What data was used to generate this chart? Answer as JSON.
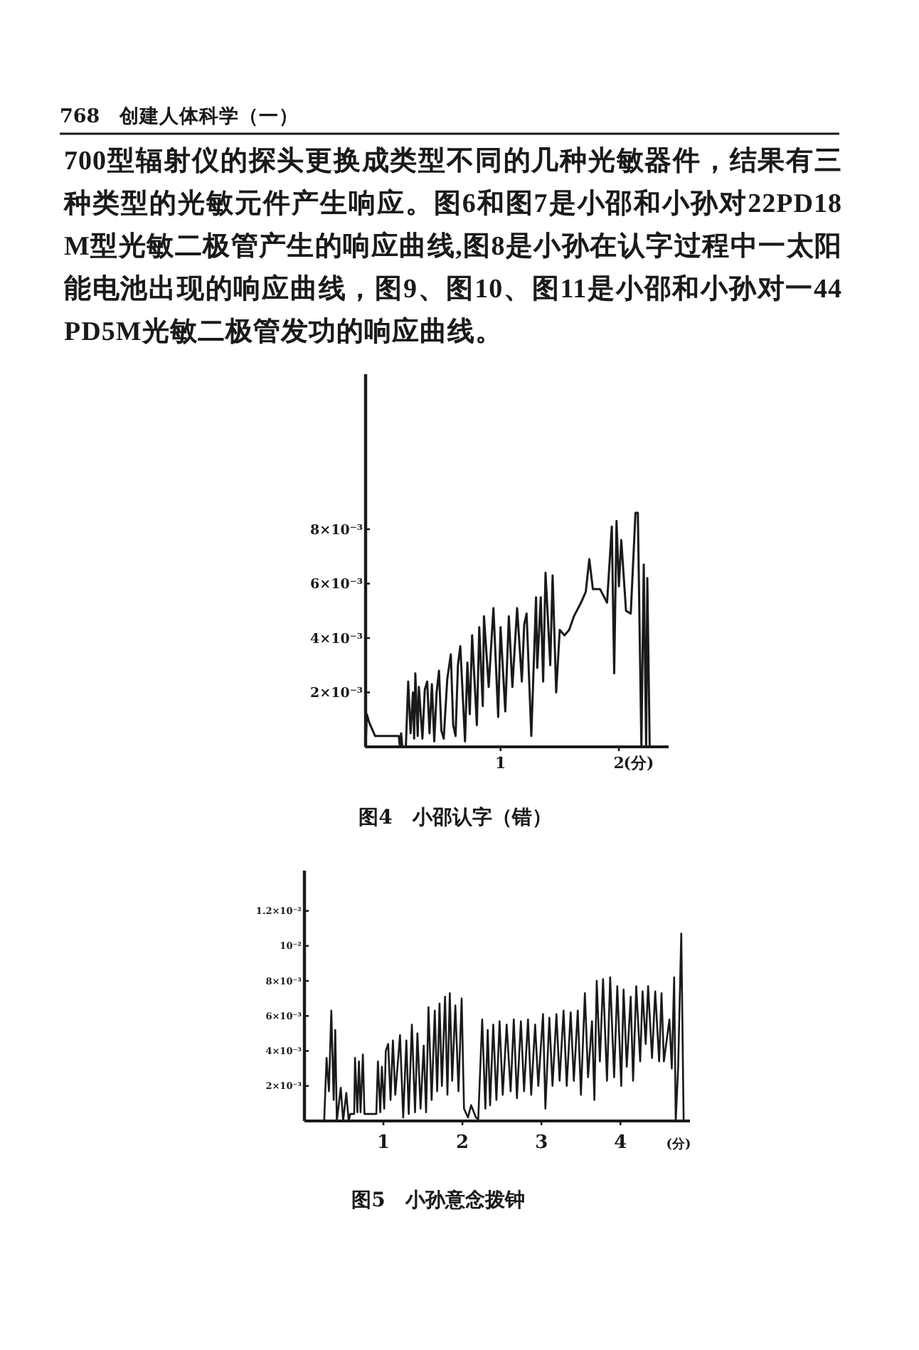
{
  "chart_data": [
    {
      "type": "line",
      "title": "图4　小邵认字（错）",
      "annotations": [
        "768　创建人体科学（一）",
        "700型辐射仪的探头更换成类型不同的几种光敏器件，结果有三种类型的光敏元件产生响应。图6和图7是小邵和小孙对22PD18M型光敏二极管产生的响应曲线,图8是小孙在认字过程中一太阳能电池出现的响应曲线，图9、图10、图11是小邵和小孙对一44PD5M光敏二极管发功的响应曲线。"
      ],
      "xlabel": "(分)",
      "xlim": [
        -0.14,
        2.42
      ],
      "ylim": [
        0,
        0.0137
      ],
      "xticks": [
        1,
        2
      ],
      "yticks": [
        {
          "value": 0.002,
          "label": "2×10⁻³"
        },
        {
          "value": 0.004,
          "label": "4×10⁻³"
        },
        {
          "value": 0.006,
          "label": "6×10⁻³"
        },
        {
          "value": 0.008,
          "label": "8×10⁻³"
        }
      ],
      "color": "#1a1a1a",
      "x": [
        -0.14,
        -0.13,
        -0.11,
        -0.08,
        -0.06,
        0.14,
        0.15,
        0.16,
        0.17,
        0.2,
        0.22,
        0.24,
        0.26,
        0.27,
        0.28,
        0.3,
        0.31,
        0.34,
        0.36,
        0.38,
        0.4,
        0.42,
        0.44,
        0.46,
        0.48,
        0.5,
        0.52,
        0.55,
        0.58,
        0.6,
        0.62,
        0.64,
        0.66,
        0.7,
        0.72,
        0.74,
        0.76,
        0.8,
        0.82,
        0.85,
        0.86,
        0.9,
        0.94,
        0.98,
        1.0,
        1.04,
        1.07,
        1.1,
        1.14,
        1.18,
        1.2,
        1.22,
        1.26,
        1.3,
        1.31,
        1.34,
        1.36,
        1.38,
        1.42,
        1.44,
        1.47,
        1.5,
        1.54,
        1.58,
        1.62,
        1.68,
        1.72,
        1.75,
        1.78,
        1.84,
        1.9,
        1.94,
        1.96,
        1.98,
        2.0,
        2.02,
        2.06,
        2.1,
        2.14,
        2.16,
        2.19,
        2.21,
        2.23,
        2.24,
        2.26
      ],
      "values": [
        0,
        0.0012,
        0.0009,
        0.0006,
        0.0004,
        0.0004,
        0,
        0.0005,
        0,
        0,
        0.0024,
        0.0005,
        0.002,
        0.0003,
        0.0027,
        0.0004,
        0.0022,
        0.0003,
        0.0021,
        0.0024,
        0.0005,
        0.0023,
        0.0002,
        0.002,
        0.0028,
        0.0006,
        0.0003,
        0.0025,
        0.0034,
        0.0008,
        0.0004,
        0.003,
        0.0037,
        0.0002,
        0.0031,
        0.0012,
        0.0041,
        0.0008,
        0.0044,
        0.0015,
        0.0048,
        0.0022,
        0.0051,
        0.0011,
        0.0044,
        0.0013,
        0.0048,
        0.0022,
        0.0051,
        0.0024,
        0.0045,
        0.0049,
        0.0004,
        0.0055,
        0.0029,
        0.0055,
        0.0024,
        0.0064,
        0.003,
        0.0063,
        0.002,
        0.0043,
        0.0041,
        0.0043,
        0.0048,
        0.0053,
        0.0057,
        0.0069,
        0.0058,
        0.0058,
        0.0053,
        0.0081,
        0.0027,
        0.0083,
        0.0059,
        0.0076,
        0.005,
        0.0049,
        0.0086,
        0.0086,
        0,
        0.0067,
        0,
        0.0062,
        0
      ]
    },
    {
      "type": "line",
      "title": "图5　小孙意念拨钟",
      "xlabel": "(分)",
      "xlim": [
        0,
        4.88
      ],
      "ylim": [
        0,
        0.0143
      ],
      "xticks": [
        1,
        2,
        3,
        4
      ],
      "yticks": [
        {
          "value": 0.002,
          "label": "2×10⁻³"
        },
        {
          "value": 0.004,
          "label": "4×10⁻³"
        },
        {
          "value": 0.006,
          "label": "6×10⁻³"
        },
        {
          "value": 0.008,
          "label": "8×10⁻³"
        },
        {
          "value": 0.01,
          "label": "10⁻²"
        },
        {
          "value": 0.012,
          "label": "1.2×10⁻²"
        }
      ],
      "color": "#1a1a1a",
      "x": [
        0.01,
        0.25,
        0.28,
        0.31,
        0.34,
        0.37,
        0.39,
        0.41,
        0.46,
        0.49,
        0.53,
        0.56,
        0.58,
        0.63,
        0.64,
        0.67,
        0.69,
        0.71,
        0.74,
        0.76,
        0.91,
        0.93,
        0.96,
        0.98,
        1.01,
        1.03,
        1.06,
        1.09,
        1.12,
        1.15,
        1.21,
        1.25,
        1.29,
        1.32,
        1.36,
        1.4,
        1.43,
        1.47,
        1.51,
        1.54,
        1.57,
        1.61,
        1.65,
        1.68,
        1.71,
        1.74,
        1.78,
        1.81,
        1.84,
        1.87,
        1.91,
        1.95,
        1.99,
        2.02,
        2.07,
        2.11,
        2.17,
        2.2,
        2.25,
        2.29,
        2.32,
        2.35,
        2.39,
        2.43,
        2.47,
        2.51,
        2.56,
        2.61,
        2.65,
        2.69,
        2.74,
        2.78,
        2.83,
        2.87,
        2.92,
        2.96,
        3.02,
        3.05,
        3.1,
        3.14,
        3.19,
        3.23,
        3.28,
        3.32,
        3.37,
        3.41,
        3.46,
        3.5,
        3.55,
        3.59,
        3.64,
        3.67,
        3.7,
        3.74,
        3.78,
        3.83,
        3.87,
        3.92,
        3.96,
        4.01,
        4.04,
        4.08,
        4.13,
        4.16,
        4.2,
        4.25,
        4.28,
        4.32,
        4.35,
        4.4,
        4.44,
        4.49,
        4.52,
        4.55,
        4.62,
        4.65,
        4.68,
        4.7,
        4.73,
        4.77,
        4.8
      ],
      "values": [
        0,
        0,
        0.0036,
        0.0017,
        0.0063,
        0.0012,
        0.0052,
        0,
        0.0019,
        0,
        0.0016,
        0,
        0.0004,
        0.0004,
        0.0036,
        0.0005,
        0.0034,
        0.0005,
        0.0038,
        0.0004,
        0.0004,
        0.0034,
        0.0005,
        0.0031,
        0.0007,
        0.004,
        0.0044,
        0.0012,
        0.0046,
        0.0015,
        0.0049,
        0.0002,
        0.0046,
        0.0004,
        0.0055,
        0.0005,
        0.005,
        0.0007,
        0.0043,
        0.0005,
        0.0065,
        0.0012,
        0.0063,
        0.0017,
        0.0067,
        0.002,
        0.0071,
        0.0015,
        0.0073,
        0.0023,
        0.0066,
        0.0017,
        0.007,
        0.0007,
        0.0002,
        0.0009,
        0.0002,
        0.0001,
        0.0058,
        0.0007,
        0.0052,
        0.0009,
        0.0055,
        0.0012,
        0.0057,
        0.0015,
        0.0055,
        0.0017,
        0.0058,
        0.0013,
        0.0057,
        0.0017,
        0.0058,
        0.0015,
        0.0055,
        0.002,
        0.0061,
        0.0007,
        0.0059,
        0.002,
        0.0061,
        0.0023,
        0.0063,
        0.002,
        0.0062,
        0.0023,
        0.0063,
        0.0015,
        0.0073,
        0.0025,
        0.0057,
        0.0012,
        0.008,
        0.0034,
        0.0081,
        0.0023,
        0.0082,
        0.0025,
        0.0077,
        0.002,
        0.0075,
        0.0031,
        0.0071,
        0.0023,
        0.0077,
        0.0034,
        0.0074,
        0.0044,
        0.0077,
        0.0036,
        0.0074,
        0.0034,
        0.0073,
        0.0034,
        0.0058,
        0.003,
        0.0082,
        0,
        0.003,
        0.0107,
        0
      ]
    }
  ]
}
